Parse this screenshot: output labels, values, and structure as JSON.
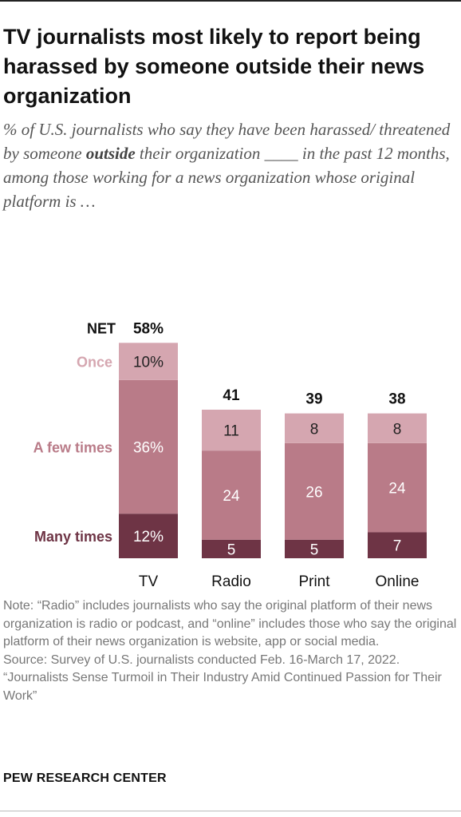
{
  "title": "TV journalists most likely to report being harassed by someone outside their news organization",
  "subtitle": {
    "part1": "% of U.S. journalists who say they have been harassed/ threatened by someone",
    "emphasis": "outside",
    "part2": "their organization ____ in the past 12 months, among those working for a news organization whose original platform is …"
  },
  "chart_data": {
    "type": "bar",
    "stacked": true,
    "categories": [
      "TV",
      "Radio",
      "Print",
      "Online"
    ],
    "series": [
      {
        "name": "Many times",
        "values": [
          12,
          5,
          5,
          7
        ],
        "labels": [
          "12%",
          "5",
          "5",
          "7"
        ],
        "color": "#6e3445"
      },
      {
        "name": "A few times",
        "values": [
          36,
          24,
          26,
          24
        ],
        "labels": [
          "36%",
          "24",
          "26",
          "24"
        ],
        "color": "#b97b88"
      },
      {
        "name": "Once",
        "values": [
          10,
          11,
          8,
          8
        ],
        "labels": [
          "10%",
          "11",
          "8",
          "8"
        ],
        "color": "#d5a6b0"
      }
    ],
    "net_label": "NET",
    "net_values": [
      "58%",
      "41",
      "39",
      "38"
    ],
    "legend_placement": "left, inline with first bar"
  },
  "notes": {
    "note": "Note: “Radio” includes journalists who say the original platform of their news organization is radio or podcast, and “online” includes those who say the original platform of their news organization is website, app or social media.",
    "source": "Source: Survey of U.S. journalists conducted Feb. 16-March 17, 2022.",
    "report": "“Journalists Sense Turmoil in Their Industry Amid Continued Passion for Their Work”"
  },
  "brand": "PEW RESEARCH CENTER"
}
